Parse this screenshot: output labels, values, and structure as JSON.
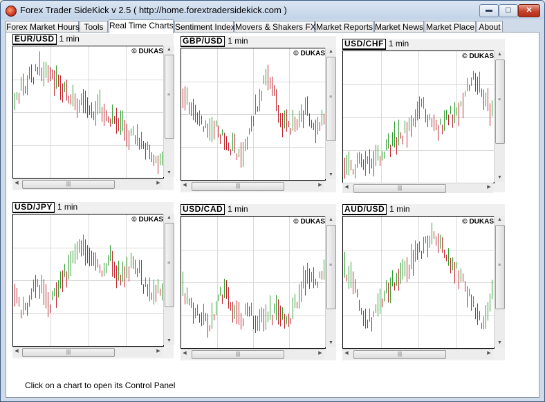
{
  "window": {
    "title": "Forex Trader SideKick  v 2.5 ( http://home.forextradersidekick.com )",
    "controls": {
      "minimize": "▬",
      "maximize": "▢",
      "close": "✕"
    }
  },
  "tabs": [
    {
      "label": "Forex Market Hours",
      "active": false
    },
    {
      "label": "Tools",
      "active": false
    },
    {
      "label": "Real Time Charts",
      "active": true
    },
    {
      "label": "Sentiment Index",
      "active": false
    },
    {
      "label": "Movers & Shakers FX",
      "active": false
    },
    {
      "label": "Market Reports",
      "active": false
    },
    {
      "label": "Market News",
      "active": false
    },
    {
      "label": "Market Place",
      "active": false
    },
    {
      "label": "About",
      "active": false
    }
  ],
  "charts": [
    {
      "symbol": "EUR/USD",
      "timeframe": "1 min",
      "copyright": "© DUKAS"
    },
    {
      "symbol": "GBP/USD",
      "timeframe": "1 min",
      "copyright": "© DUKAS"
    },
    {
      "symbol": "USD/CHF",
      "timeframe": "1 min",
      "copyright": "© DUKAS"
    },
    {
      "symbol": "USD/JPY",
      "timeframe": "1 min",
      "copyright": "© DUKAS"
    },
    {
      "symbol": "USD/CAD",
      "timeframe": "1 min",
      "copyright": "© DUKAS"
    },
    {
      "symbol": "AUD/USD",
      "timeframe": "1 min",
      "copyright": "© DUKAS"
    }
  ],
  "chart_data": [
    {
      "type": "candlestick",
      "title": "EUR/USD 1 min",
      "trend": [
        0.38,
        0.28,
        0.18,
        0.12,
        0.16,
        0.28,
        0.36,
        0.42,
        0.4,
        0.5,
        0.46,
        0.56,
        0.6,
        0.68,
        0.74,
        0.82,
        0.9,
        0.96
      ],
      "bull_color": "#2f9e2f",
      "bear_color": "#c0242c"
    },
    {
      "type": "candlestick",
      "title": "GBP/USD 1 min",
      "trend": [
        0.35,
        0.45,
        0.55,
        0.62,
        0.6,
        0.72,
        0.8,
        0.85,
        0.7,
        0.4,
        0.18,
        0.35,
        0.55,
        0.65,
        0.5,
        0.48,
        0.6,
        0.5
      ],
      "bull_color": "#2f9e2f",
      "bear_color": "#c0242c"
    },
    {
      "type": "candlestick",
      "title": "USD/CHF 1 min",
      "trend": [
        0.95,
        0.94,
        0.88,
        0.92,
        0.85,
        0.75,
        0.7,
        0.62,
        0.5,
        0.42,
        0.55,
        0.6,
        0.5,
        0.45,
        0.3,
        0.12,
        0.35,
        0.45
      ],
      "bull_color": "#2f9e2f",
      "bear_color": "#c0242c"
    },
    {
      "type": "candlestick",
      "title": "USD/JPY 1 min",
      "trend": [
        0.65,
        0.78,
        0.6,
        0.55,
        0.7,
        0.55,
        0.45,
        0.25,
        0.2,
        0.35,
        0.42,
        0.3,
        0.45,
        0.4,
        0.35,
        0.55,
        0.62,
        0.55
      ],
      "bull_color": "#2f9e2f",
      "bear_color": "#c0242c"
    },
    {
      "type": "candlestick",
      "title": "USD/CAD 1 min",
      "trend": [
        0.55,
        0.7,
        0.8,
        0.88,
        0.72,
        0.55,
        0.7,
        0.8,
        0.78,
        0.82,
        0.8,
        0.76,
        0.8,
        0.78,
        0.6,
        0.4,
        0.5,
        0.45
      ],
      "bull_color": "#2f9e2f",
      "bear_color": "#c0242c"
    },
    {
      "type": "candlestick",
      "title": "AUD/USD 1 min",
      "trend": [
        0.4,
        0.5,
        0.75,
        0.85,
        0.7,
        0.55,
        0.45,
        0.4,
        0.3,
        0.2,
        0.1,
        0.15,
        0.3,
        0.4,
        0.55,
        0.75,
        0.9,
        0.6
      ],
      "bull_color": "#2f9e2f",
      "bear_color": "#c0242c"
    }
  ],
  "status": {
    "text": "Click on a chart to open its Control Panel"
  }
}
